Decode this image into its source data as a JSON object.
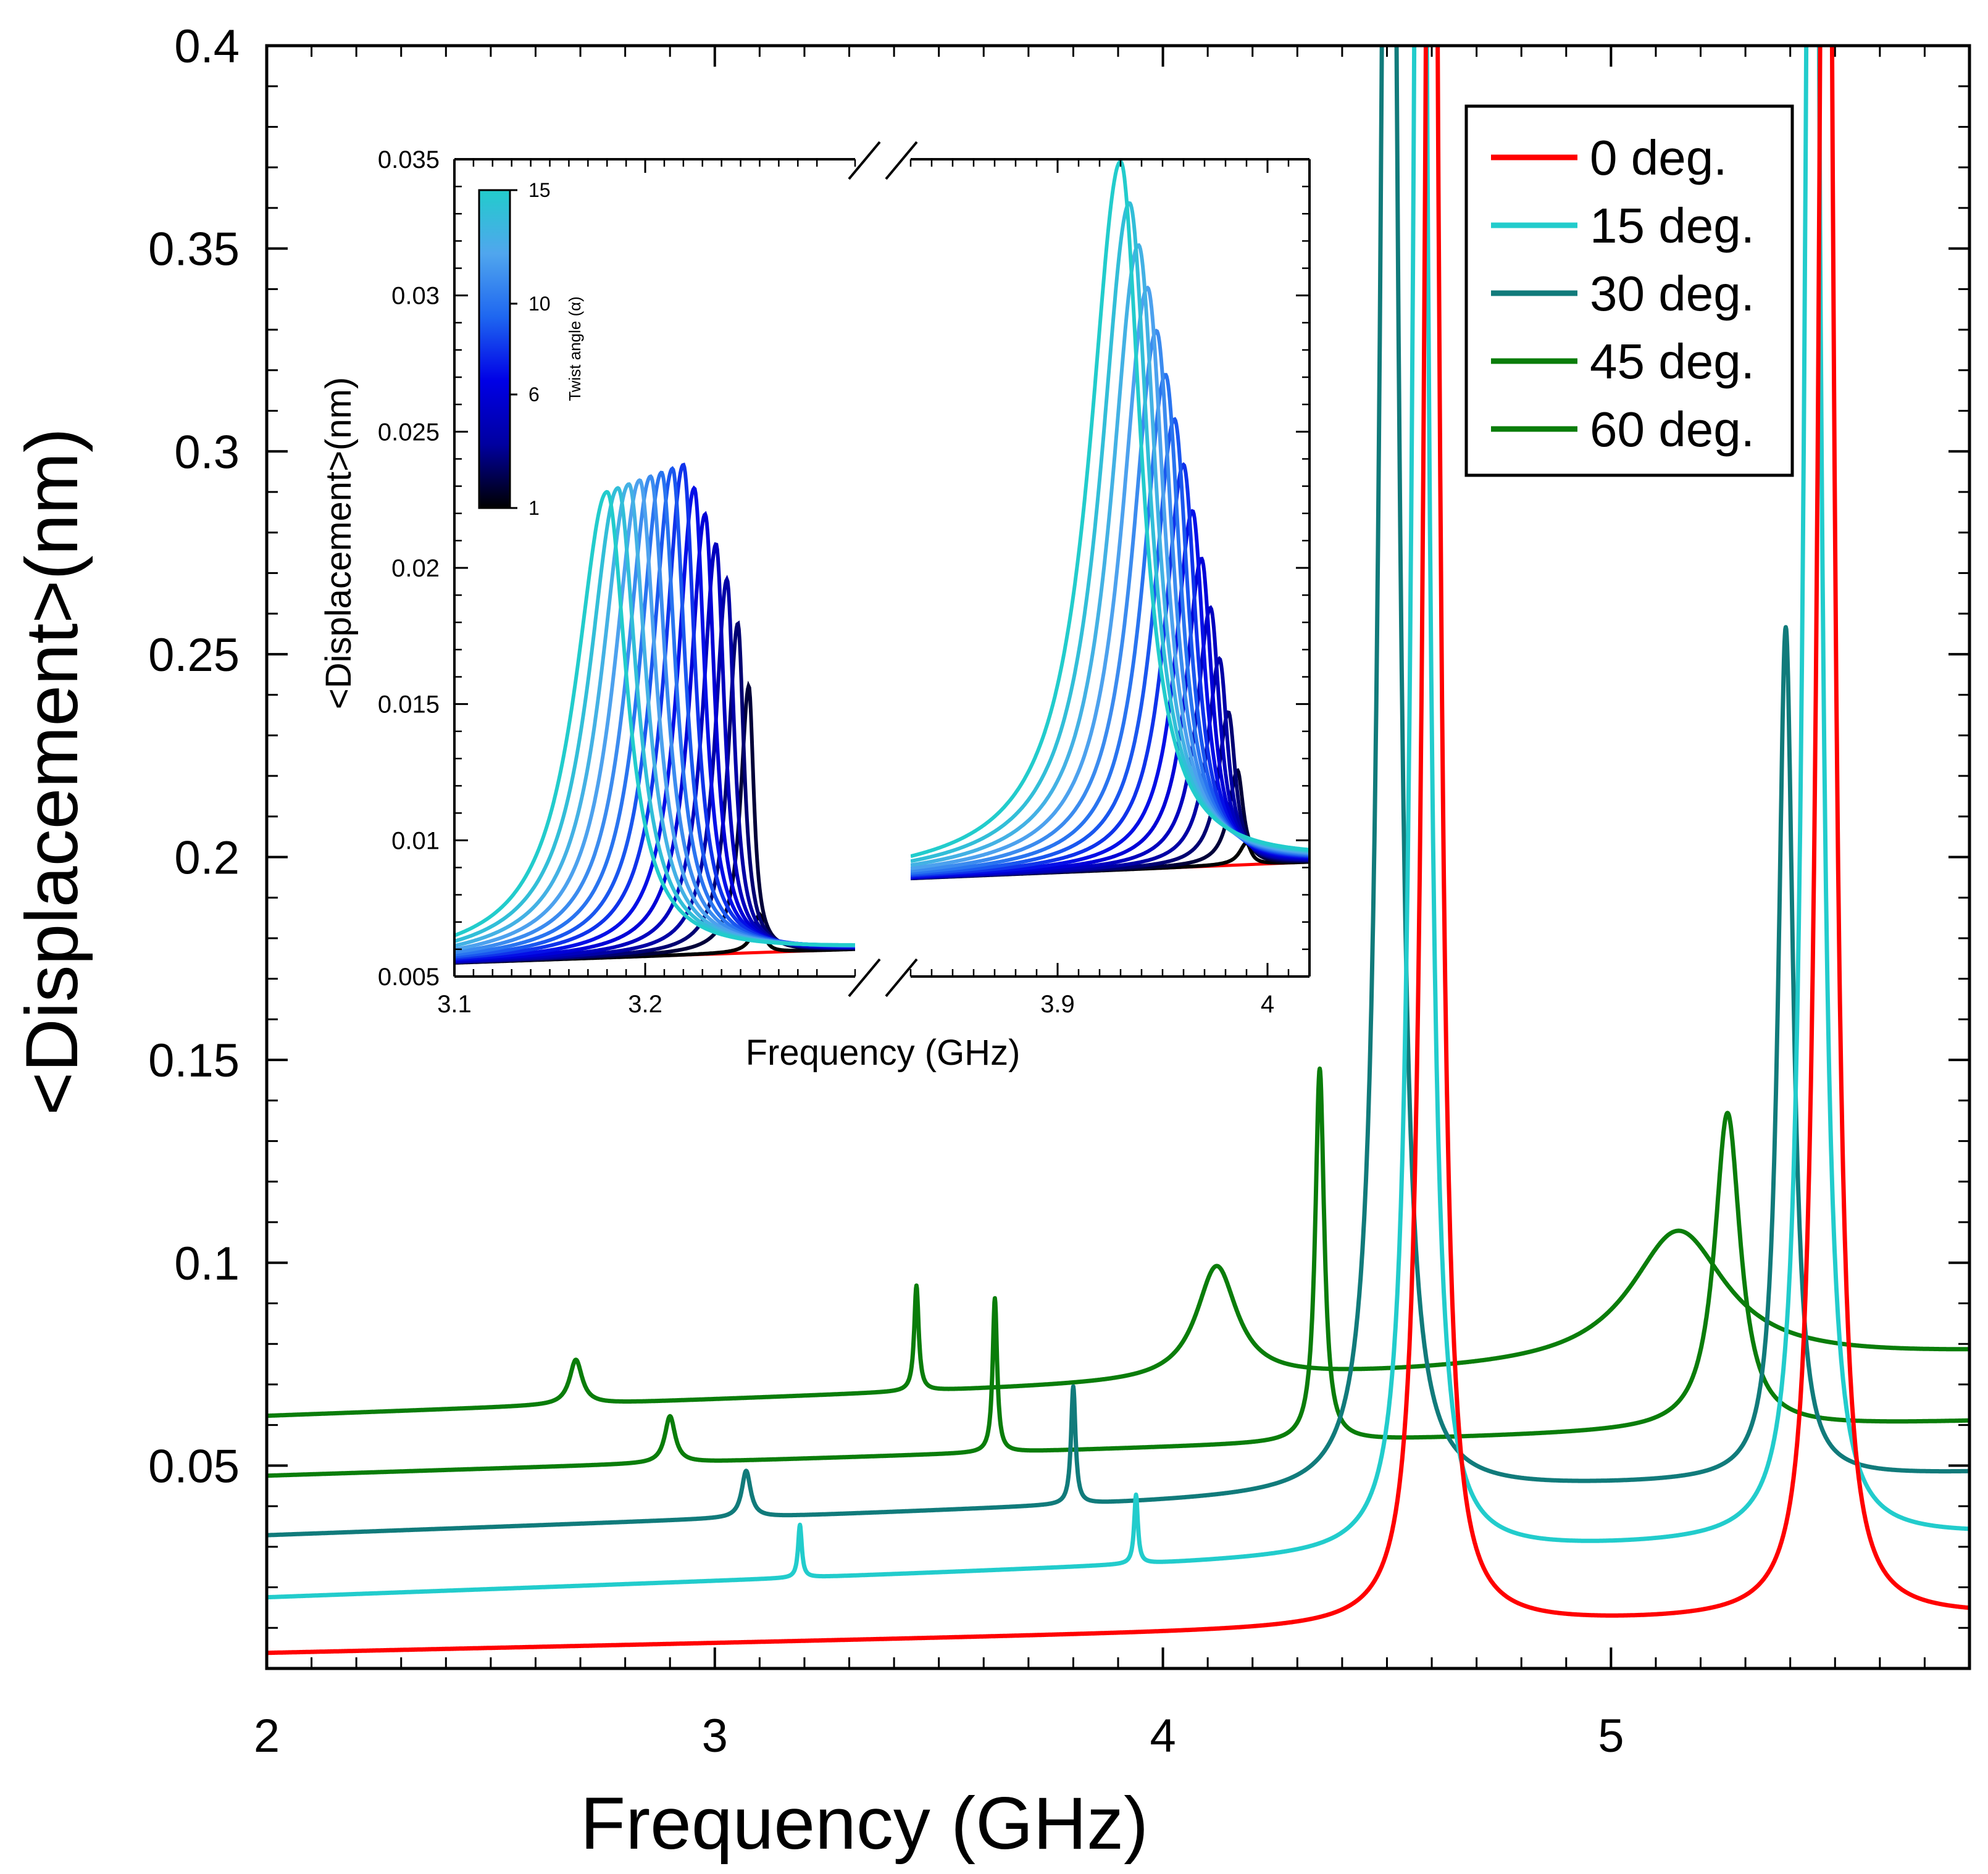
{
  "chart_data": [
    {
      "id": "main",
      "type": "line",
      "xlabel": "Frequency (GHz)",
      "ylabel": "<Displacement>(nm)",
      "xlim": [
        2,
        5.8
      ],
      "ylim": [
        0,
        0.4
      ],
      "x_ticks": [
        2,
        3,
        4,
        5
      ],
      "x_tick_labels": [
        "2",
        "3",
        "4",
        "5"
      ],
      "y_ticks": [
        0.05,
        0.1,
        0.15,
        0.2,
        0.25,
        0.3,
        0.35,
        0.4
      ],
      "y_tick_labels": [
        "0.05",
        "0.1",
        "0.15",
        "0.2",
        "0.25",
        "0.3",
        "0.35",
        "0.4"
      ],
      "legend_position": "top-right",
      "series": [
        {
          "name": "0 deg.",
          "color": "#ff0000",
          "base": 0.0038,
          "slope": 0.0024,
          "peaks": [
            {
              "f": 4.6,
              "a": 0.6,
              "w": 0.018
            },
            {
              "f": 5.48,
              "a": 0.6,
              "w": 0.018
            }
          ]
        },
        {
          "name": "15 deg.",
          "color": "#22cccc",
          "base": 0.0175,
          "slope": 0.004,
          "peaks": [
            {
              "f": 3.19,
              "a": 0.013,
              "w": 0.005
            },
            {
              "f": 3.94,
              "a": 0.017,
              "w": 0.005
            },
            {
              "f": 4.575,
              "a": 0.6,
              "w": 0.018
            },
            {
              "f": 5.45,
              "a": 0.6,
              "w": 0.018
            }
          ]
        },
        {
          "name": "30 deg.",
          "color": "#117b7b",
          "base": 0.0328,
          "slope": 0.004,
          "peaks": [
            {
              "f": 3.07,
              "a": 0.0115,
              "w": 0.012
            },
            {
              "f": 3.8,
              "a": 0.029,
              "w": 0.006
            },
            {
              "f": 4.505,
              "a": 0.6,
              "w": 0.02
            },
            {
              "f": 5.39,
              "a": 0.21,
              "w": 0.02
            }
          ]
        },
        {
          "name": "45 deg.",
          "color": "#0a7d0a",
          "base": 0.0475,
          "slope": 0.0035,
          "peaks": [
            {
              "f": 2.9,
              "a": 0.0115,
              "w": 0.014
            },
            {
              "f": 3.625,
              "a": 0.038,
              "w": 0.006
            },
            {
              "f": 4.35,
              "a": 0.092,
              "w": 0.012
            },
            {
              "f": 5.26,
              "a": 0.078,
              "w": 0.035
            }
          ]
        },
        {
          "name": "60 deg.",
          "color": "#0a7d0a",
          "base": 0.0622,
          "slope": 0.004,
          "peaks": [
            {
              "f": 2.69,
              "a": 0.011,
              "w": 0.017
            },
            {
              "f": 3.45,
              "a": 0.026,
              "w": 0.006
            },
            {
              "f": 4.12,
              "a": 0.028,
              "w": 0.055
            },
            {
              "f": 5.15,
              "a": 0.033,
              "w": 0.13
            }
          ]
        }
      ]
    },
    {
      "id": "inset",
      "type": "line",
      "xlabel": "Frequency (GHz)",
      "ylabel": "<Displacement>(nm)",
      "ylim": [
        0.005,
        0.035
      ],
      "broken_x_axis": true,
      "x_segments": [
        [
          3.1,
          3.31
        ],
        [
          3.83,
          4.02
        ]
      ],
      "x_ticks": [
        3.1,
        3.2,
        3.9,
        4
      ],
      "x_tick_labels": [
        "3.1",
        "3.2",
        "3.9",
        "4"
      ],
      "y_ticks": [
        0.005,
        0.01,
        0.015,
        0.02,
        0.025,
        0.03,
        0.035
      ],
      "y_tick_labels": [
        "0.005",
        "0.01",
        "0.015",
        "0.02",
        "0.025",
        "0.03",
        "0.035"
      ],
      "colorbar": {
        "title": "Twist angle (α)",
        "range": [
          1,
          15
        ],
        "ticks": [
          1,
          6,
          10,
          15
        ],
        "tick_labels": [
          "1",
          "6",
          "10",
          "15"
        ],
        "colors": [
          "#000000",
          "#0000a0",
          "#0000e6",
          "#1e66f0",
          "#50a6ee",
          "#22cccc"
        ]
      },
      "reference_series": {
        "name": "0 deg.",
        "color": "#ff0000",
        "left": {
          "y_start": 0.0055,
          "y_end": 0.006
        },
        "right": {
          "y_start": 0.0086,
          "y_end": 0.0092
        }
      },
      "family_series": {
        "alphas": [
          1,
          2,
          3,
          4,
          5,
          6,
          7,
          8,
          9,
          10,
          11,
          12,
          13,
          14,
          15
        ],
        "peak1_freq_start": 3.26,
        "peak1_freq_end": 3.18,
        "peak1_amp_start": 0.0072,
        "peak1_amp_max": 0.0238,
        "peak1_amp_end": 0.0229,
        "peak2_freq_start": 3.99,
        "peak2_freq_end": 3.93,
        "peak2_amp_start": 0.0096,
        "peak2_amp_end": 0.0348
      }
    }
  ]
}
